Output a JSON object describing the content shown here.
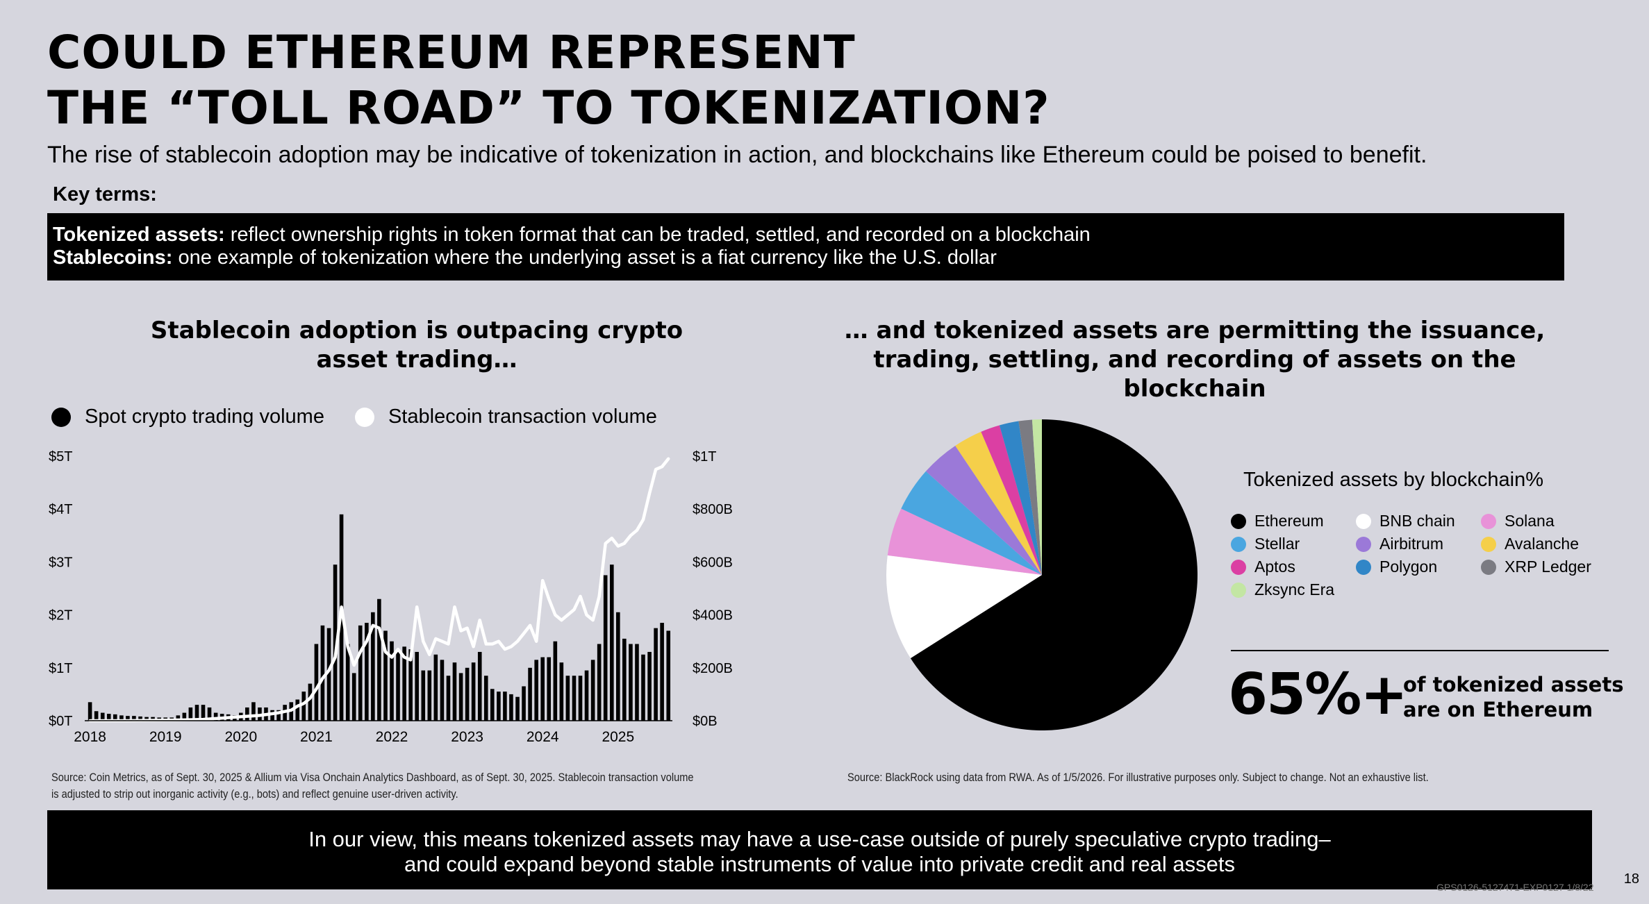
{
  "header": {
    "title_line1": "COULD ETHEREUM REPRESENT",
    "title_line2": "THE “TOLL ROAD” TO TOKENIZATION?",
    "subtitle": "The rise of stablecoin adoption may be indicative of tokenization in action, and blockchains like Ethereum could be poised to benefit."
  },
  "key_terms": {
    "label": "Key terms:",
    "tokenized_term": "Tokenized assets:",
    "tokenized_def": " reflect ownership rights in token format that can be traded, settled, and recorded on a blockchain",
    "stablecoins_term": "Stablecoins:",
    "stablecoins_def": " one example of tokenization where the underlying asset is a fiat currency like the U.S. dollar"
  },
  "left_panel": {
    "title_line1": "Stablecoin adoption is outpacing crypto",
    "title_line2": "asset trading…",
    "source_line1": "Source: Coin Metrics, as of Sept. 30, 2025 & Allium via Visa Onchain Analytics Dashboard, as of Sept. 30, 2025. Stablecoin transaction volume",
    "source_line2": "is adjusted to strip out inorganic activity (e.g., bots) and reflect genuine user-driven activity."
  },
  "right_panel": {
    "title_line1": "… and  tokenized assets are permitting the issuance,",
    "title_line2": "trading, settling, and recording of assets on the blockchain",
    "legend_title": "Tokenized assets by blockchain%",
    "stat_value": "65%+",
    "stat_text_line1": "of tokenized assets",
    "stat_text_line2": "are on Ethereum",
    "source": "Source: BlackRock using data from RWA. As of 1/5/2026. For illustrative purposes only. Subject to change. Not an exhaustive list."
  },
  "footer": {
    "line1": "In our view, this means tokenized assets may have a use-case outside of purely speculative crypto trading–",
    "line2": "and could expand beyond stable instruments of value into private credit and real assets",
    "page_number": "18",
    "doc_code": "GPS0126-5127471-EXP0127 1/8/22"
  },
  "chart_data": [
    {
      "type": "bar",
      "series": [
        {
          "name": "Spot crypto trading volume",
          "axis": "left",
          "type": "bar",
          "color": "#000000",
          "x": [
            2018.0,
            2018.083,
            2018.167,
            2018.25,
            2018.333,
            2018.417,
            2018.5,
            2018.583,
            2018.667,
            2018.75,
            2018.833,
            2018.917,
            2019.0,
            2019.083,
            2019.167,
            2019.25,
            2019.333,
            2019.417,
            2019.5,
            2019.583,
            2019.667,
            2019.75,
            2019.833,
            2019.917,
            2020.0,
            2020.083,
            2020.167,
            2020.25,
            2020.333,
            2020.417,
            2020.5,
            2020.583,
            2020.667,
            2020.75,
            2020.833,
            2020.917,
            2021.0,
            2021.083,
            2021.167,
            2021.25,
            2021.333,
            2021.417,
            2021.5,
            2021.583,
            2021.667,
            2021.75,
            2021.833,
            2021.917,
            2022.0,
            2022.083,
            2022.167,
            2022.25,
            2022.333,
            2022.417,
            2022.5,
            2022.583,
            2022.667,
            2022.75,
            2022.833,
            2022.917,
            2023.0,
            2023.083,
            2023.167,
            2023.25,
            2023.333,
            2023.417,
            2023.5,
            2023.583,
            2023.667,
            2023.75,
            2023.833,
            2023.917,
            2024.0,
            2024.083,
            2024.167,
            2024.25,
            2024.333,
            2024.417,
            2024.5,
            2024.583,
            2024.667,
            2024.75,
            2024.833,
            2024.917,
            2025.0,
            2025.083,
            2025.167,
            2025.25,
            2025.333,
            2025.417,
            2025.5,
            2025.583,
            2025.667
          ],
          "values": [
            0.35,
            0.18,
            0.15,
            0.13,
            0.12,
            0.1,
            0.09,
            0.09,
            0.08,
            0.07,
            0.07,
            0.06,
            0.06,
            0.06,
            0.1,
            0.15,
            0.25,
            0.3,
            0.3,
            0.25,
            0.15,
            0.13,
            0.12,
            0.1,
            0.15,
            0.25,
            0.35,
            0.25,
            0.25,
            0.2,
            0.2,
            0.3,
            0.35,
            0.4,
            0.55,
            0.7,
            1.45,
            1.8,
            1.75,
            2.95,
            3.9,
            1.45,
            0.9,
            1.8,
            1.85,
            2.05,
            2.3,
            1.7,
            1.5,
            1.3,
            1.4,
            1.35,
            1.3,
            0.95,
            0.95,
            1.25,
            1.15,
            0.85,
            1.1,
            0.9,
            1.0,
            1.1,
            1.3,
            0.85,
            0.6,
            0.55,
            0.55,
            0.5,
            0.45,
            0.65,
            1.0,
            1.15,
            1.2,
            1.2,
            1.5,
            1.1,
            0.85,
            0.85,
            0.85,
            0.95,
            1.15,
            1.45,
            2.75,
            2.95,
            2.05,
            1.55,
            1.45,
            1.45,
            1.25,
            1.3,
            1.75,
            1.85,
            1.7
          ]
        },
        {
          "name": "Stablecoin transaction volume",
          "axis": "right",
          "type": "line",
          "color": "#ffffff",
          "x": [
            2018.0,
            2018.25,
            2018.5,
            2018.75,
            2019.0,
            2019.25,
            2019.5,
            2019.75,
            2020.0,
            2020.25,
            2020.5,
            2020.583,
            2020.667,
            2020.75,
            2020.833,
            2020.917,
            2021.0,
            2021.083,
            2021.167,
            2021.25,
            2021.333,
            2021.417,
            2021.5,
            2021.583,
            2021.667,
            2021.75,
            2021.833,
            2021.917,
            2022.0,
            2022.083,
            2022.167,
            2022.25,
            2022.333,
            2022.417,
            2022.5,
            2022.583,
            2022.667,
            2022.75,
            2022.833,
            2022.917,
            2023.0,
            2023.083,
            2023.167,
            2023.25,
            2023.333,
            2023.417,
            2023.5,
            2023.583,
            2023.667,
            2023.75,
            2023.833,
            2023.917,
            2024.0,
            2024.083,
            2024.167,
            2024.25,
            2024.333,
            2024.417,
            2024.5,
            2024.583,
            2024.667,
            2024.75,
            2024.833,
            2024.917,
            2025.0,
            2025.083,
            2025.167,
            2025.25,
            2025.333,
            2025.417,
            2025.5,
            2025.583,
            2025.667
          ],
          "values": [
            0,
            0,
            0,
            1,
            2,
            3,
            5,
            10,
            15,
            20,
            30,
            35,
            40,
            55,
            65,
            85,
            120,
            160,
            190,
            240,
            430,
            280,
            210,
            260,
            300,
            360,
            350,
            260,
            240,
            270,
            240,
            230,
            430,
            300,
            250,
            310,
            300,
            290,
            430,
            340,
            350,
            280,
            380,
            290,
            290,
            300,
            270,
            280,
            300,
            330,
            360,
            300,
            530,
            460,
            400,
            380,
            400,
            420,
            470,
            400,
            380,
            470,
            670,
            690,
            660,
            670,
            700,
            720,
            760,
            860,
            950,
            960,
            990
          ]
        }
      ],
      "xlim": [
        2017.93,
        2025.72
      ],
      "xticks": [
        "2018",
        "2019",
        "2020",
        "2021",
        "2022",
        "2023",
        "2024",
        "2025"
      ],
      "ylim_left": [
        0,
        5
      ],
      "ylim_right": [
        0,
        1000
      ],
      "yticks_left": [
        "$0T",
        "$1T",
        "$2T",
        "$3T",
        "$4T",
        "$5T"
      ],
      "yticks_right": [
        "$0B",
        "$200B",
        "$400B",
        "$600B",
        "$800B",
        "$1T"
      ],
      "legend_position": "top-left",
      "grid": false
    },
    {
      "type": "pie",
      "slices": [
        {
          "label": "Ethereum",
          "value": 66.0,
          "color": "#000000"
        },
        {
          "label": "BNB chain",
          "value": 11.0,
          "color": "#ffffff"
        },
        {
          "label": "Solana",
          "value": 5.0,
          "color": "#e892d8"
        },
        {
          "label": "Stellar",
          "value": 4.6,
          "color": "#4aa6e0"
        },
        {
          "label": "Airbitrum",
          "value": 4.0,
          "color": "#9b79d8"
        },
        {
          "label": "Avalanche",
          "value": 3.0,
          "color": "#f5cf4a"
        },
        {
          "label": "Aptos",
          "value": 2.0,
          "color": "#db3fa3"
        },
        {
          "label": "Polygon",
          "value": 2.0,
          "color": "#3186c7"
        },
        {
          "label": "XRP Ledger",
          "value": 1.4,
          "color": "#7b7b82"
        },
        {
          "label": "Zksync Era",
          "value": 1.0,
          "color": "#c3e6a3"
        }
      ],
      "start_angle": "12 o'clock",
      "direction": "clockwise",
      "legend_position": "right"
    }
  ]
}
